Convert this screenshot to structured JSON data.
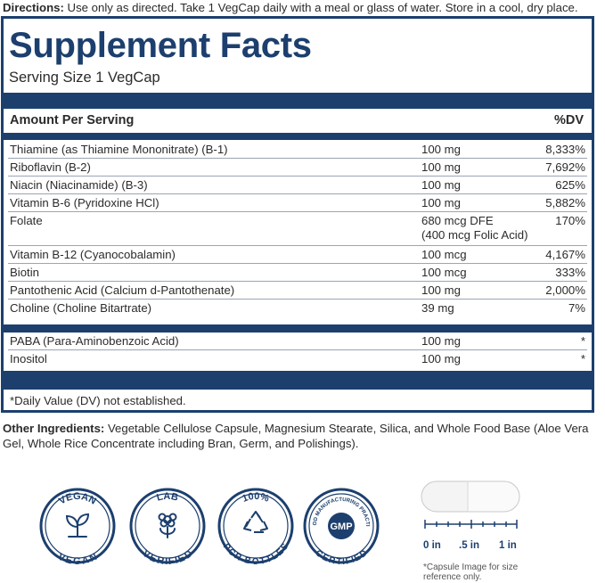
{
  "directions": {
    "label": "Directions:",
    "text": " Use only as directed. Take 1 VegCap daily with a meal or glass of water. Store in a cool, dry place."
  },
  "facts": {
    "title": "Supplement Facts",
    "serving_size": "Serving Size 1 VegCap",
    "header_amount": "Amount Per Serving",
    "header_dv": "%DV",
    "rows": [
      {
        "name": "Thiamine (as Thiamine Mononitrate) (B-1)",
        "amount": "100 mg",
        "dv": "8,333%"
      },
      {
        "name": "Riboflavin (B-2)",
        "amount": "100 mg",
        "dv": "7,692%"
      },
      {
        "name": "Niacin (Niacinamide) (B-3)",
        "amount": "100 mg",
        "dv": "625%"
      },
      {
        "name": "Vitamin B-6 (Pyridoxine HCl)",
        "amount": "100 mg",
        "dv": "5,882%"
      },
      {
        "name": "Folate",
        "amount": "680 mcg DFE",
        "amount2": "(400 mcg Folic Acid)",
        "dv": "170%"
      },
      {
        "name": "Vitamin B-12 (Cyanocobalamin)",
        "amount": "100 mcg",
        "dv": "4,167%"
      },
      {
        "name": "Biotin",
        "amount": "100 mcg",
        "dv": "333%"
      },
      {
        "name": "Pantothenic Acid (Calcium d-Pantothenate)",
        "amount": "100 mg",
        "dv": "2,000%"
      },
      {
        "name": "Choline (Choline Bitartrate)",
        "amount": "39 mg",
        "dv": "7%"
      }
    ],
    "rows2": [
      {
        "name": "PABA (Para-Aminobenzoic Acid)",
        "amount": "100 mg",
        "dv": "*"
      },
      {
        "name": "Inositol",
        "amount": "100 mg",
        "dv": "*"
      }
    ],
    "footnote": "*Daily Value (DV) not established."
  },
  "other_ingredients": {
    "label": "Other Ingredients:",
    "text": " Vegetable Cellulose Capsule, Magnesium Stearate, Silica, and Whole Food Base (Aloe Vera Gel, Whole Rice Concentrate including Bran, Germ, and Polishings)."
  },
  "badges": {
    "vegan_top": "VEGAN",
    "vegan_bottom": "VEGAN",
    "lab_top": "LAB",
    "lab_bottom": "VERIFIED",
    "pcr_top": "100%",
    "pcr_bottom": "PCR BOTTLES",
    "gmp_top": "GOOD MANUFACTURING PRACTICE",
    "gmp_center": "GMP",
    "gmp_bottom": "CERTIFIED"
  },
  "capsule": {
    "asterisk": "*",
    "scale_labels": [
      "0 in",
      ".5 in",
      "1 in"
    ],
    "note_line1": "*Capsule Image for size",
    "note_line2": "reference only."
  },
  "colors": {
    "navy": "#1c3f6e"
  }
}
